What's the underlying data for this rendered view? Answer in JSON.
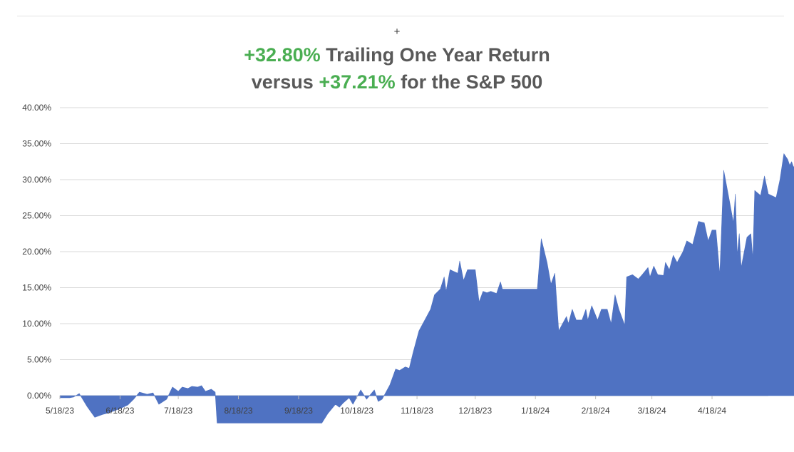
{
  "header": {
    "plus_symbol": "+",
    "line1": {
      "pct": "+32.80%",
      "text": " Trailing One Year Return"
    },
    "line2": {
      "prefix": "versus ",
      "pct": "+37.21%",
      "suffix": " for the S&P 500"
    }
  },
  "colors": {
    "area": "#4f72c2",
    "accent_green": "#4aae52",
    "grid": "#d9d9d9"
  },
  "chart_data": {
    "type": "area",
    "x_axis": {
      "start": "5/18/23",
      "end": "5/17/24",
      "tick_labels": [
        "5/18/23",
        "6/18/23",
        "7/18/23",
        "8/18/23",
        "9/18/23",
        "10/18/23",
        "11/18/23",
        "12/18/23",
        "1/18/24",
        "2/18/24",
        "3/18/24",
        "4/18/24"
      ]
    },
    "y_axis": {
      "ylim": [
        0,
        40
      ],
      "tick_values": [
        0,
        5,
        10,
        15,
        20,
        25,
        30,
        35,
        40
      ],
      "tick_labels": [
        "0.00%",
        "5.00%",
        "10.00%",
        "15.00%",
        "20.00%",
        "25.00%",
        "30.00%",
        "35.00%",
        "40.00%"
      ]
    },
    "grid": true,
    "legend": "none",
    "series": [
      {
        "points": [
          [
            "5/18/23",
            -0.3
          ],
          [
            "5/23/23",
            -0.3
          ],
          [
            "5/25/23",
            -0.2
          ],
          [
            "5/28/23",
            0.3
          ],
          [
            "6/1/23",
            -1.5
          ],
          [
            "6/5/23",
            -3.0
          ],
          [
            "6/9/23",
            -2.6
          ],
          [
            "6/12/23",
            -2.4
          ],
          [
            "6/15/23",
            -2.1
          ],
          [
            "6/18/23",
            -1.8
          ],
          [
            "6/22/23",
            -1.3
          ],
          [
            "6/25/23",
            -0.5
          ],
          [
            "6/28/23",
            0.5
          ],
          [
            "7/2/23",
            0.2
          ],
          [
            "7/5/23",
            0.4
          ],
          [
            "7/8/23",
            -1.2
          ],
          [
            "7/12/23",
            -0.5
          ],
          [
            "7/15/23",
            1.2
          ],
          [
            "7/18/23",
            0.6
          ],
          [
            "7/20/23",
            1.2
          ],
          [
            "7/23/23",
            1.0
          ],
          [
            "7/25/23",
            1.3
          ],
          [
            "7/28/23",
            1.2
          ],
          [
            "7/30/23",
            1.4
          ],
          [
            "8/1/23",
            0.6
          ],
          [
            "8/4/23",
            0.9
          ],
          [
            "8/6/23",
            0.5
          ],
          [
            "8/7/23",
            -3.8
          ],
          [
            "9/30/23",
            -3.8
          ],
          [
            "10/3/23",
            -2.5
          ],
          [
            "10/7/23",
            -1.2
          ],
          [
            "10/9/23",
            -1.6
          ],
          [
            "10/11/23",
            -1.0
          ],
          [
            "10/14/23",
            -0.3
          ],
          [
            "10/16/23",
            -1.2
          ],
          [
            "10/20/23",
            0.8
          ],
          [
            "10/23/23",
            -0.5
          ],
          [
            "10/27/23",
            0.8
          ],
          [
            "10/29/23",
            -0.8
          ],
          [
            "10/31/23",
            -0.5
          ],
          [
            "11/4/23",
            1.5
          ],
          [
            "11/7/23",
            3.7
          ],
          [
            "11/9/23",
            3.5
          ],
          [
            "11/12/23",
            4.0
          ],
          [
            "11/14/23",
            3.8
          ],
          [
            "11/16/23",
            6.0
          ],
          [
            "11/19/23",
            9.0
          ],
          [
            "11/23/23",
            11.0
          ],
          [
            "11/25/23",
            12.0
          ],
          [
            "11/27/23",
            14.0
          ],
          [
            "11/30/23",
            14.8
          ],
          [
            "12/2/23",
            16.5
          ],
          [
            "12/3/23",
            14.5
          ],
          [
            "12/5/23",
            17.5
          ],
          [
            "12/9/23",
            17.0
          ],
          [
            "12/10/23",
            18.7
          ],
          [
            "12/12/23",
            16.0
          ],
          [
            "12/14/23",
            17.5
          ],
          [
            "12/18/23",
            17.5
          ],
          [
            "12/20/23",
            13.0
          ],
          [
            "12/22/23",
            14.5
          ],
          [
            "12/24/23",
            14.3
          ],
          [
            "12/26/23",
            14.5
          ],
          [
            "12/29/23",
            14.2
          ],
          [
            "12/31/23",
            15.8
          ],
          [
            "1/1/24",
            14.8
          ],
          [
            "1/19/24",
            14.8
          ],
          [
            "1/21/24",
            21.8
          ],
          [
            "1/24/24",
            18.5
          ],
          [
            "1/26/24",
            15.5
          ],
          [
            "1/28/24",
            17.0
          ],
          [
            "1/30/24",
            9.0
          ],
          [
            "2/1/24",
            10.0
          ],
          [
            "2/3/24",
            11.0
          ],
          [
            "2/4/24",
            10.0
          ],
          [
            "2/6/24",
            12.0
          ],
          [
            "2/8/24",
            10.5
          ],
          [
            "2/11/24",
            10.5
          ],
          [
            "2/13/24",
            12.0
          ],
          [
            "2/14/24",
            10.5
          ],
          [
            "2/16/24",
            12.5
          ],
          [
            "2/19/24",
            10.5
          ],
          [
            "2/21/24",
            12.0
          ],
          [
            "2/24/24",
            12.0
          ],
          [
            "2/26/24",
            10.0
          ],
          [
            "2/28/24",
            14.0
          ],
          [
            "3/1/24",
            12.0
          ],
          [
            "3/4/24",
            9.8
          ],
          [
            "3/5/24",
            16.5
          ],
          [
            "3/8/24",
            16.8
          ],
          [
            "3/11/24",
            16.2
          ],
          [
            "3/13/24",
            16.8
          ],
          [
            "3/16/24",
            17.8
          ],
          [
            "3/17/24",
            16.5
          ],
          [
            "3/19/24",
            18.0
          ],
          [
            "3/21/24",
            16.8
          ],
          [
            "3/24/24",
            16.7
          ],
          [
            "3/25/24",
            18.5
          ],
          [
            "3/27/24",
            17.5
          ],
          [
            "3/29/24",
            19.5
          ],
          [
            "3/31/24",
            18.5
          ],
          [
            "4/3/24",
            20.0
          ],
          [
            "4/5/24",
            21.5
          ],
          [
            "4/8/24",
            21.0
          ],
          [
            "4/11/24",
            24.2
          ],
          [
            "4/14/24",
            24.0
          ],
          [
            "4/16/24",
            21.5
          ],
          [
            "4/18/24",
            23.0
          ],
          [
            "4/20/24",
            23.0
          ],
          [
            "4/22/24",
            16.8
          ],
          [
            "4/24/24",
            31.3
          ],
          [
            "4/27/24",
            27.0
          ],
          [
            "4/29/24",
            24.0
          ],
          [
            "4/30/24",
            28.0
          ],
          [
            "5/1/24",
            19.5
          ],
          [
            "5/2/24",
            22.5
          ],
          [
            "5/3/24",
            17.8
          ],
          [
            "5/6/24",
            22.0
          ],
          [
            "5/8/24",
            22.5
          ],
          [
            "5/9/24",
            19.0
          ],
          [
            "5/10/24",
            28.5
          ],
          [
            "5/13/24",
            27.8
          ],
          [
            "5/15/24",
            30.5
          ],
          [
            "5/17/24",
            28.0
          ],
          [
            "5/21/24",
            27.5
          ],
          [
            "5/23/24",
            30.0
          ],
          [
            "5/25/24",
            33.6
          ],
          [
            "5/27/24",
            32.8
          ],
          [
            "5/28/24",
            32.0
          ],
          [
            "5/29/24",
            32.5
          ],
          [
            "5/30/24",
            31.7
          ],
          [
            "6/1/24",
            32.8
          ]
        ]
      }
    ]
  }
}
